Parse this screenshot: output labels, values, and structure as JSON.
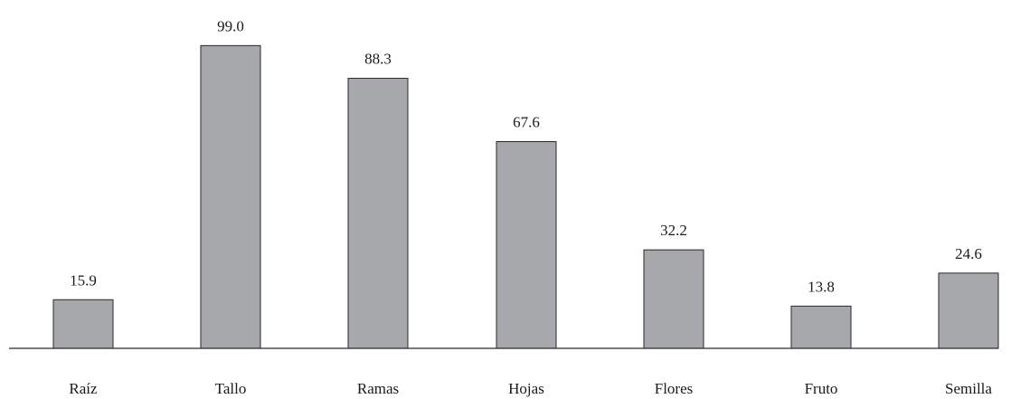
{
  "chart_data": {
    "type": "bar",
    "title": "",
    "xlabel": "",
    "ylabel": "",
    "categories": [
      "Raíz",
      "Tallo",
      "Ramas",
      "Hojas",
      "Flores",
      "Fruto",
      "Semilla"
    ],
    "values": [
      15.9,
      99.0,
      88.3,
      67.6,
      32.2,
      13.8,
      24.6
    ],
    "value_labels": [
      "15.9",
      "99.0",
      "88.3",
      "67.6",
      "32.2",
      "13.8",
      "24.6"
    ],
    "ylim": [
      0,
      100
    ],
    "grid": false,
    "legend": "none",
    "bar_color": "#a7a8ac",
    "edge_color": "#2a2a2a"
  }
}
